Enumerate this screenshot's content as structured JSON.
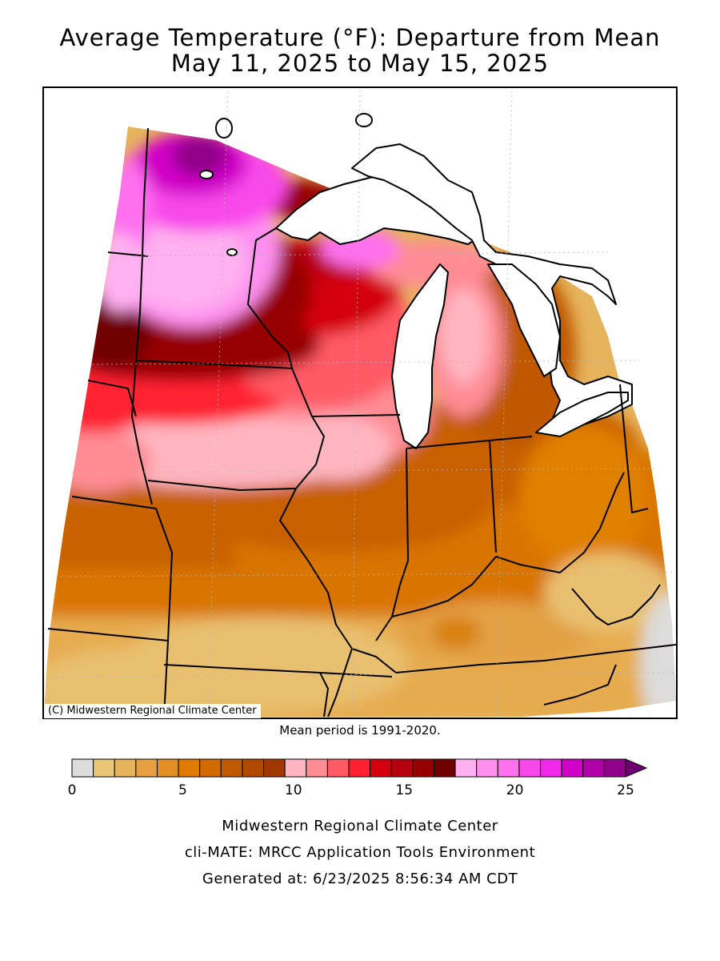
{
  "title": {
    "line1": "Average Temperature (°F): Departure from Mean",
    "line2": "May 11, 2025 to May 15, 2025"
  },
  "map": {
    "copyright": "(C) Midwestern Regional Climate Center",
    "mean_period": "Mean period is 1991-2020."
  },
  "legend": {
    "tick_labels": [
      "0",
      "5",
      "10",
      "15",
      "20",
      "25"
    ],
    "tick_values": [
      0,
      5,
      10,
      15,
      20,
      25
    ],
    "min": 0,
    "max": 25,
    "colors": [
      "#dcdcdc",
      "#e8c878",
      "#e6b45c",
      "#e6a040",
      "#e38d25",
      "#e07a00",
      "#d06a00",
      "#c05a00",
      "#b04800",
      "#a03800",
      "#ffb6c1",
      "#ff8c95",
      "#ff5a65",
      "#ff2030",
      "#d40010",
      "#b50010",
      "#960000",
      "#700000",
      "#ffb0f0",
      "#ff90f0",
      "#ff70ee",
      "#f848ea",
      "#f028e8",
      "#d000c8",
      "#b000a8",
      "#900088"
    ],
    "arrow_color": "#700070"
  },
  "footer": {
    "line1": "Midwestern Regional Climate Center",
    "line2": "cli-MATE: MRCC Application Tools Environment",
    "line3": "Generated at: 6/23/2025 8:56:34 AM CDT"
  }
}
